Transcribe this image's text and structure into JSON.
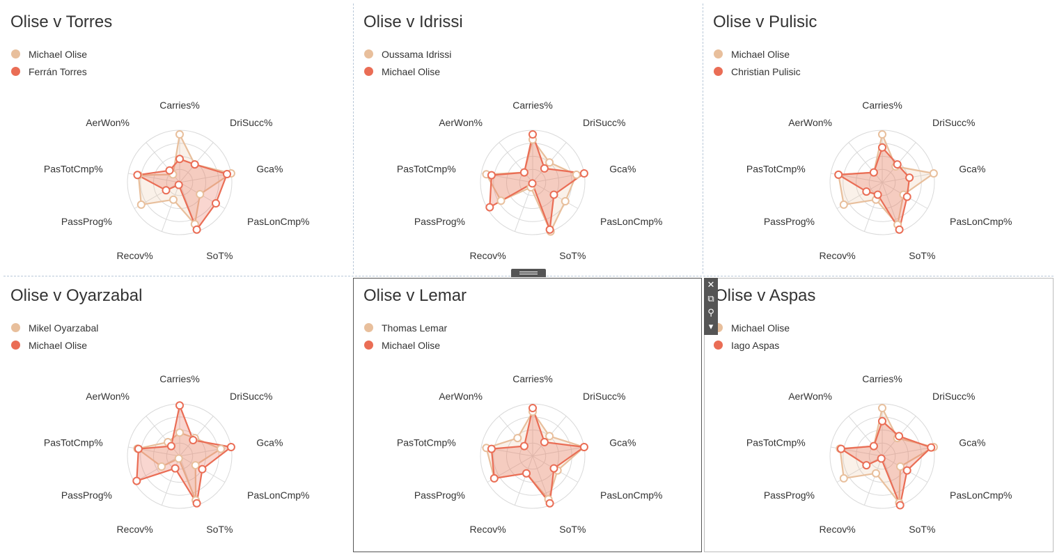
{
  "axes": [
    "Carries%",
    "DriSucc%",
    "Gca%",
    "PasLonCmp%",
    "SoT%",
    "Recov%",
    "PassProg%",
    "PasTotCmp%",
    "AerWon%"
  ],
  "colors": {
    "player_a": "#e8bf9c",
    "player_b": "#ea6d55",
    "grid": "#d9d9d9"
  },
  "toolbar": {
    "close_icon": "✕",
    "open_icon": "⧉",
    "filter_icon": "⚲",
    "menu_icon": "▾"
  },
  "panels": [
    {
      "title": "Olise v Torres",
      "chart_data": {
        "type": "radar",
        "axes": [
          "Carries%",
          "DriSucc%",
          "Gca%",
          "PasLonCmp%",
          "SoT%",
          "Recov%",
          "PassProg%",
          "PasTotCmp%",
          "AerWon%"
        ],
        "rmax": 1,
        "series": [
          {
            "name": "Michael Olise",
            "values": [
              0.92,
              0.45,
              1.0,
              0.45,
              0.85,
              0.35,
              0.85,
              0.8,
              0.2
            ]
          },
          {
            "name": "Ferrán Torres",
            "values": [
              0.45,
              0.45,
              0.92,
              0.8,
              0.96,
              0.05,
              0.3,
              0.82,
              0.3
            ]
          }
        ]
      }
    },
    {
      "title": "Olise v Idrissi",
      "chart_data": {
        "type": "radar",
        "axes": [
          "Carries%",
          "DriSucc%",
          "Gca%",
          "PasLonCmp%",
          "SoT%",
          "Recov%",
          "PassProg%",
          "PasTotCmp%",
          "AerWon%"
        ],
        "rmax": 1,
        "series": [
          {
            "name": "Oussama Idrissi",
            "values": [
              0.82,
              0.5,
              0.85,
              0.72,
              1.0,
              0.1,
              0.7,
              0.9,
              0.25
            ]
          },
          {
            "name": "Michael Olise",
            "values": [
              0.92,
              0.35,
              1.0,
              0.47,
              0.96,
              0.02,
              0.95,
              0.8,
              0.25
            ]
          }
        ]
      }
    },
    {
      "title": "Olise v Pulisic",
      "chart_data": {
        "type": "radar",
        "axes": [
          "Carries%",
          "DriSucc%",
          "Gca%",
          "PasLonCmp%",
          "SoT%",
          "Recov%",
          "PassProg%",
          "PasTotCmp%",
          "AerWon%"
        ],
        "rmax": 1,
        "series": [
          {
            "name": "Michael Olise",
            "values": [
              0.92,
              0.4,
              1.0,
              0.47,
              0.86,
              0.35,
              0.85,
              0.85,
              0.25
            ]
          },
          {
            "name": "Christian Pulisic",
            "values": [
              0.67,
              0.45,
              0.53,
              0.55,
              0.96,
              0.25,
              0.35,
              0.85,
              0.25
            ]
          }
        ]
      }
    },
    {
      "title": "Olise v Oyarzabal",
      "chart_data": {
        "type": "radar",
        "axes": [
          "Carries%",
          "DriSucc%",
          "Gca%",
          "PasLonCmp%",
          "SoT%",
          "Recov%",
          "PassProg%",
          "PasTotCmp%",
          "AerWon%"
        ],
        "rmax": 1,
        "series": [
          {
            "name": "Mikel Oyarzabal",
            "values": [
              0.45,
              0.45,
              0.8,
              0.35,
              0.9,
              0.05,
              0.4,
              0.82,
              0.35
            ]
          },
          {
            "name": "Michael Olise",
            "values": [
              0.97,
              0.4,
              1.0,
              0.5,
              0.96,
              0.25,
              0.95,
              0.8,
              0.25
            ]
          }
        ]
      }
    },
    {
      "title": "Olise v Lemar",
      "chart_data": {
        "type": "radar",
        "axes": [
          "Carries%",
          "DriSucc%",
          "Gca%",
          "PasLonCmp%",
          "SoT%",
          "Recov%",
          "PassProg%",
          "PasTotCmp%",
          "AerWon%"
        ],
        "rmax": 1,
        "series": [
          {
            "name": "Thomas Lemar",
            "values": [
              0.85,
              0.5,
              1.0,
              0.55,
              0.88,
              0.35,
              0.85,
              0.9,
              0.45
            ]
          },
          {
            "name": "Michael Olise",
            "values": [
              0.92,
              0.35,
              1.0,
              0.47,
              0.96,
              0.35,
              0.85,
              0.8,
              0.25
            ]
          }
        ]
      }
    },
    {
      "title": "Olise v Aspas",
      "chart_data": {
        "type": "radar",
        "axes": [
          "Carries%",
          "DriSucc%",
          "Gca%",
          "PasLonCmp%",
          "SoT%",
          "Recov%",
          "PassProg%",
          "PasTotCmp%",
          "AerWon%"
        ],
        "rmax": 1,
        "series": [
          {
            "name": "Michael Olise",
            "values": [
              0.92,
              0.45,
              1.0,
              0.4,
              0.95,
              0.35,
              0.85,
              0.82,
              0.25
            ]
          },
          {
            "name": "Iago Aspas",
            "values": [
              0.67,
              0.5,
              0.95,
              0.55,
              1.0,
              0.05,
              0.35,
              0.8,
              0.25
            ]
          }
        ]
      }
    }
  ]
}
